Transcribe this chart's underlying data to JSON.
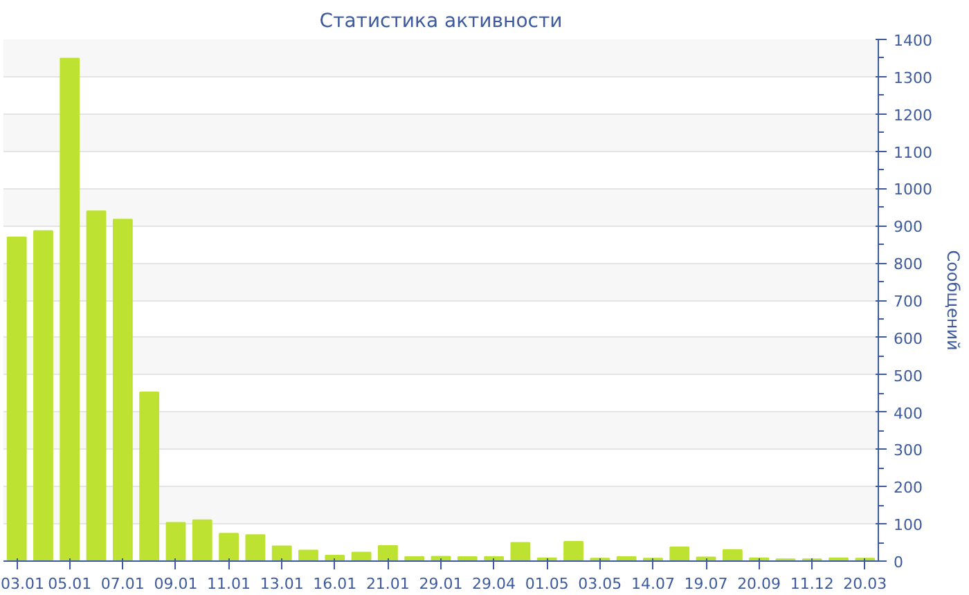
{
  "chart_data": {
    "type": "bar",
    "title": "Статистика активности",
    "ylabel": "Сообщений",
    "categories": [
      "03.01",
      null,
      "05.01",
      null,
      "07.01",
      null,
      "09.01",
      null,
      "11.01",
      null,
      "13.01",
      null,
      "16.01",
      null,
      "21.01",
      null,
      "29.01",
      null,
      "29.04",
      null,
      "01.05",
      null,
      "03.05",
      null,
      "14.07",
      null,
      "19.07",
      null,
      "20.09",
      null,
      "11.12",
      null,
      "20.03"
    ],
    "values": [
      869,
      886,
      1349,
      939,
      917,
      453,
      103,
      110,
      74,
      70,
      40,
      29,
      15,
      23,
      41,
      11,
      12,
      11,
      11,
      49,
      8,
      52,
      7,
      11,
      7,
      37,
      10,
      30,
      8,
      5,
      5,
      8,
      7
    ],
    "color": "#bde232",
    "ylim": [
      0,
      1400
    ],
    "yticks": [
      0,
      100,
      200,
      300,
      400,
      500,
      600,
      700,
      800,
      900,
      1000,
      1100,
      1200,
      1300,
      1400
    ],
    "grid": "y"
  }
}
